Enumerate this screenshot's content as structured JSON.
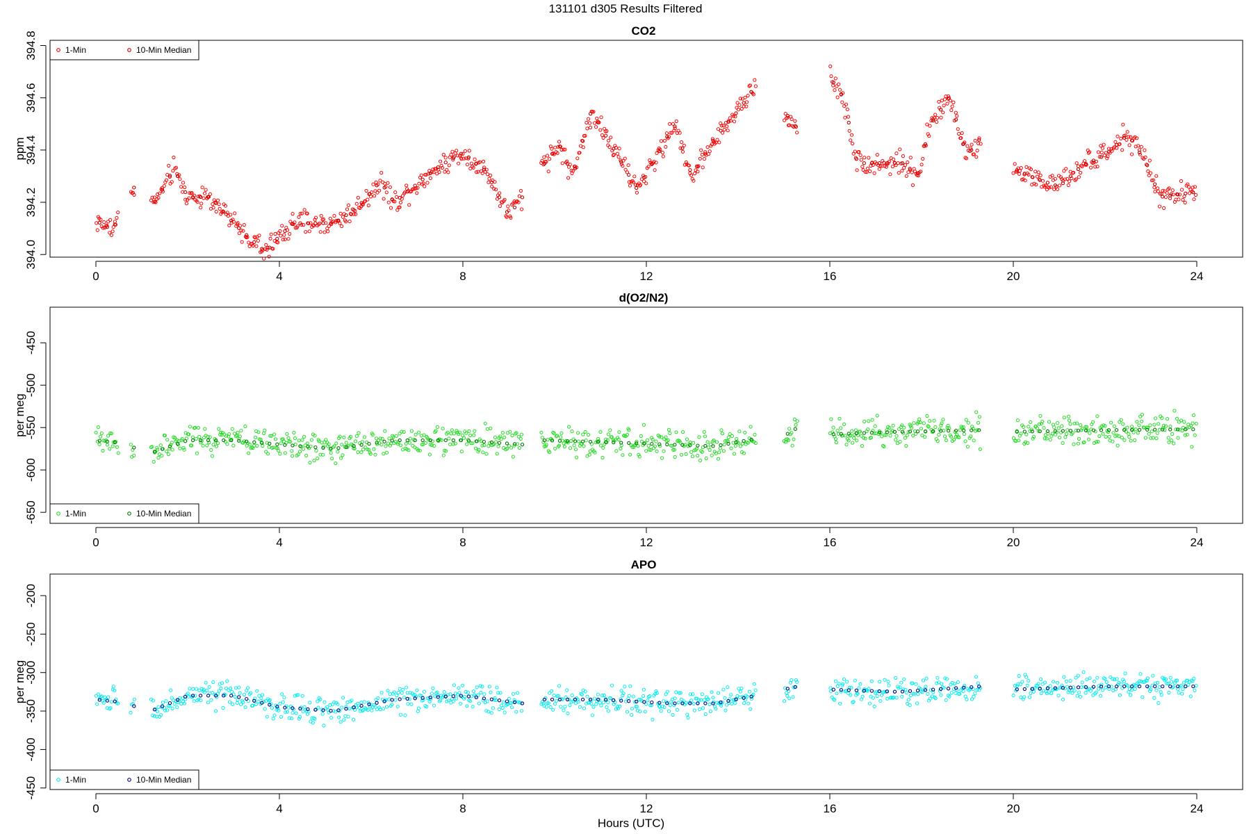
{
  "figure": {
    "title": "131101   d305   Results Filtered",
    "xlabel": "Hours (UTC)"
  },
  "chart_data": [
    {
      "type": "scatter",
      "title": "CO2",
      "ylabel": "ppm",
      "xlim": [
        -1,
        25
      ],
      "ylim": [
        393.99,
        394.82
      ],
      "xticks": [
        0,
        4,
        8,
        12,
        16,
        20,
        24
      ],
      "yticks": [
        394.0,
        394.2,
        394.4,
        394.6,
        394.8
      ],
      "ytick_labels": [
        "394.0",
        "394.2",
        "394.4",
        "394.6",
        "394.8"
      ],
      "legend": {
        "position": "top-left",
        "entries": [
          "1-Min",
          "10-Min Median"
        ]
      },
      "series": [
        {
          "name": "1-Min",
          "color": "#ff0000",
          "kind": "1-Min",
          "segments": [
            [
              0.0,
              0.5
            ],
            [
              0.75,
              0.85
            ],
            [
              1.2,
              9.3
            ],
            [
              9.7,
              14.4
            ],
            [
              15.0,
              15.3
            ],
            [
              16.0,
              19.3
            ],
            [
              20.0,
              24.0
            ]
          ],
          "anchors": [
            [
              0.0,
              394.13
            ],
            [
              0.3,
              394.1
            ],
            [
              0.45,
              394.12
            ],
            [
              0.8,
              394.26
            ],
            [
              1.3,
              394.2
            ],
            [
              1.7,
              394.33
            ],
            [
              2.0,
              394.22
            ],
            [
              2.5,
              394.22
            ],
            [
              3.0,
              394.12
            ],
            [
              3.5,
              394.04
            ],
            [
              3.7,
              394.01
            ],
            [
              4.0,
              394.07
            ],
            [
              4.3,
              394.12
            ],
            [
              5.2,
              394.12
            ],
            [
              5.7,
              394.18
            ],
            [
              6.2,
              394.28
            ],
            [
              6.5,
              394.2
            ],
            [
              7.0,
              394.27
            ],
            [
              7.5,
              394.34
            ],
            [
              8.0,
              394.39
            ],
            [
              8.5,
              394.32
            ],
            [
              9.0,
              394.15
            ],
            [
              9.3,
              394.22
            ],
            [
              9.7,
              394.33
            ],
            [
              10.1,
              394.42
            ],
            [
              10.4,
              394.3
            ],
            [
              10.8,
              394.55
            ],
            [
              11.3,
              394.4
            ],
            [
              11.8,
              394.25
            ],
            [
              12.3,
              394.4
            ],
            [
              12.6,
              394.5
            ],
            [
              13.0,
              394.3
            ],
            [
              13.5,
              394.45
            ],
            [
              14.0,
              394.55
            ],
            [
              14.4,
              394.65
            ],
            [
              15.0,
              394.55
            ],
            [
              15.3,
              394.48
            ],
            [
              16.0,
              394.68
            ],
            [
              16.3,
              394.6
            ],
            [
              16.6,
              394.35
            ],
            [
              17.2,
              394.35
            ],
            [
              17.6,
              394.35
            ],
            [
              17.9,
              394.3
            ],
            [
              18.2,
              394.5
            ],
            [
              18.6,
              394.6
            ],
            [
              19.0,
              394.38
            ],
            [
              19.3,
              394.45
            ],
            [
              20.0,
              394.33
            ],
            [
              20.5,
              394.29
            ],
            [
              21.0,
              394.26
            ],
            [
              21.5,
              394.34
            ],
            [
              22.0,
              394.38
            ],
            [
              22.5,
              394.46
            ],
            [
              22.9,
              394.35
            ],
            [
              23.2,
              394.22
            ],
            [
              23.6,
              394.23
            ],
            [
              24.0,
              394.24
            ]
          ],
          "noise": 0.03,
          "n": 900
        },
        {
          "name": "10-Min Median",
          "color": "#c00000",
          "kind": "median"
        }
      ]
    },
    {
      "type": "scatter",
      "title": "d(O2/N2)",
      "ylabel": "per meg",
      "xlim": [
        -1,
        25
      ],
      "ylim": [
        -663,
        -408
      ],
      "xticks": [
        0,
        4,
        8,
        12,
        16,
        20,
        24
      ],
      "yticks": [
        -650,
        -600,
        -550,
        -500,
        -450
      ],
      "ytick_labels": [
        "-650",
        "-600",
        "-550",
        "-500",
        "-450"
      ],
      "legend": {
        "position": "bottom-left",
        "entries": [
          "1-Min",
          "10-Min Median"
        ]
      },
      "series": [
        {
          "name": "1-Min",
          "color": "#22dd22",
          "kind": "1-Min",
          "segments": [
            [
              0.0,
              0.5
            ],
            [
              0.75,
              0.85
            ],
            [
              1.2,
              9.3
            ],
            [
              9.7,
              14.4
            ],
            [
              15.0,
              15.3
            ],
            [
              16.0,
              19.3
            ],
            [
              20.0,
              24.0
            ]
          ],
          "anchors": [
            [
              0.0,
              -565
            ],
            [
              0.5,
              -568
            ],
            [
              1.2,
              -580
            ],
            [
              2.0,
              -565
            ],
            [
              3.0,
              -565
            ],
            [
              4.0,
              -570
            ],
            [
              5.2,
              -575
            ],
            [
              6.5,
              -565
            ],
            [
              8.0,
              -565
            ],
            [
              9.3,
              -570
            ],
            [
              9.7,
              -565
            ],
            [
              11.0,
              -567
            ],
            [
              12.5,
              -570
            ],
            [
              13.5,
              -572
            ],
            [
              14.4,
              -563
            ],
            [
              15.0,
              -560
            ],
            [
              15.3,
              -550
            ],
            [
              16.0,
              -558
            ],
            [
              17.5,
              -555
            ],
            [
              19.3,
              -553
            ],
            [
              20.0,
              -555
            ],
            [
              22.0,
              -553
            ],
            [
              24.0,
              -552
            ]
          ],
          "noise": 12,
          "n": 900
        },
        {
          "name": "10-Min Median",
          "color": "#007700",
          "kind": "median"
        }
      ]
    },
    {
      "type": "scatter",
      "title": "APO",
      "ylabel": "per meg",
      "xlim": [
        -1,
        25
      ],
      "ylim": [
        -452,
        -172
      ],
      "xticks": [
        0,
        4,
        8,
        12,
        16,
        20,
        24
      ],
      "yticks": [
        -450,
        -400,
        -350,
        -300,
        -250,
        -200
      ],
      "ytick_labels": [
        "-450",
        "-400",
        "-350",
        "-300",
        "-250",
        "-200"
      ],
      "legend": {
        "position": "bottom-left",
        "entries": [
          "1-Min",
          "10-Min Median"
        ]
      },
      "series": [
        {
          "name": "1-Min",
          "color": "#00eeee",
          "kind": "1-Min",
          "segments": [
            [
              0.0,
              0.5
            ],
            [
              0.75,
              0.85
            ],
            [
              1.2,
              9.3
            ],
            [
              9.7,
              14.4
            ],
            [
              15.0,
              15.3
            ],
            [
              16.0,
              19.3
            ],
            [
              20.0,
              24.0
            ]
          ],
          "anchors": [
            [
              0.0,
              -335
            ],
            [
              0.5,
              -338
            ],
            [
              1.2,
              -350
            ],
            [
              2.0,
              -330
            ],
            [
              3.0,
              -330
            ],
            [
              4.0,
              -345
            ],
            [
              5.2,
              -350
            ],
            [
              6.5,
              -335
            ],
            [
              8.0,
              -330
            ],
            [
              9.3,
              -340
            ],
            [
              9.7,
              -335
            ],
            [
              11.0,
              -335
            ],
            [
              12.5,
              -340
            ],
            [
              13.5,
              -340
            ],
            [
              14.4,
              -330
            ],
            [
              15.0,
              -322
            ],
            [
              15.3,
              -318
            ],
            [
              16.0,
              -322
            ],
            [
              17.5,
              -325
            ],
            [
              19.3,
              -318
            ],
            [
              20.0,
              -322
            ],
            [
              22.0,
              -318
            ],
            [
              24.0,
              -318
            ]
          ],
          "noise": 12,
          "n": 900
        },
        {
          "name": "10-Min Median",
          "color": "#000088",
          "kind": "median"
        }
      ]
    }
  ]
}
